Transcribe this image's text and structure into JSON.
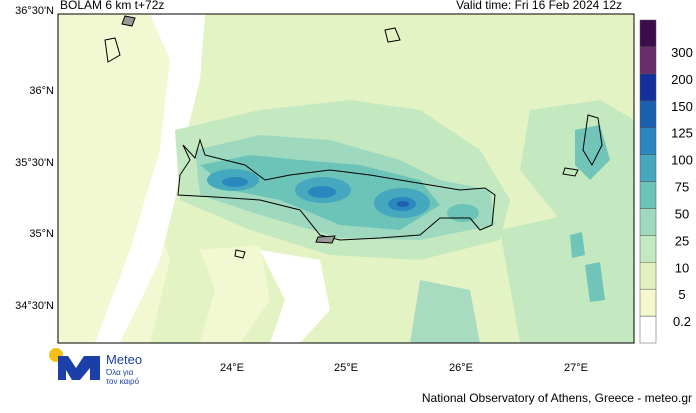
{
  "header": {
    "model": "BOLAM 6 km t+72z",
    "valid_time": "Valid time: Fri 16 Feb 2024 12z"
  },
  "map": {
    "lat_labels": [
      "36°30'N",
      "36°N",
      "35°30'N",
      "35°N",
      "34°30'N"
    ],
    "lon_labels": [
      "24°E",
      "25°E",
      "26°E",
      "27°E"
    ]
  },
  "colorbar": {
    "levels": [
      0.2,
      5,
      10,
      25,
      50,
      75,
      100,
      125,
      150,
      200,
      300
    ],
    "colors": [
      "#ffffff",
      "#f4f8cc",
      "#e2f2bc",
      "#c4e8c0",
      "#9ed9bf",
      "#6cc4b8",
      "#45a8bf",
      "#2a88bf",
      "#1c60b0",
      "#14309c",
      "#6a2c6c",
      "#3c0c4c"
    ]
  },
  "logo": {
    "name": "Meteo",
    "tagline_1": "Όλα για",
    "tagline_2": "τον καιρό"
  },
  "footer": "National Observatory of Athens, Greece - meteo.gr"
}
